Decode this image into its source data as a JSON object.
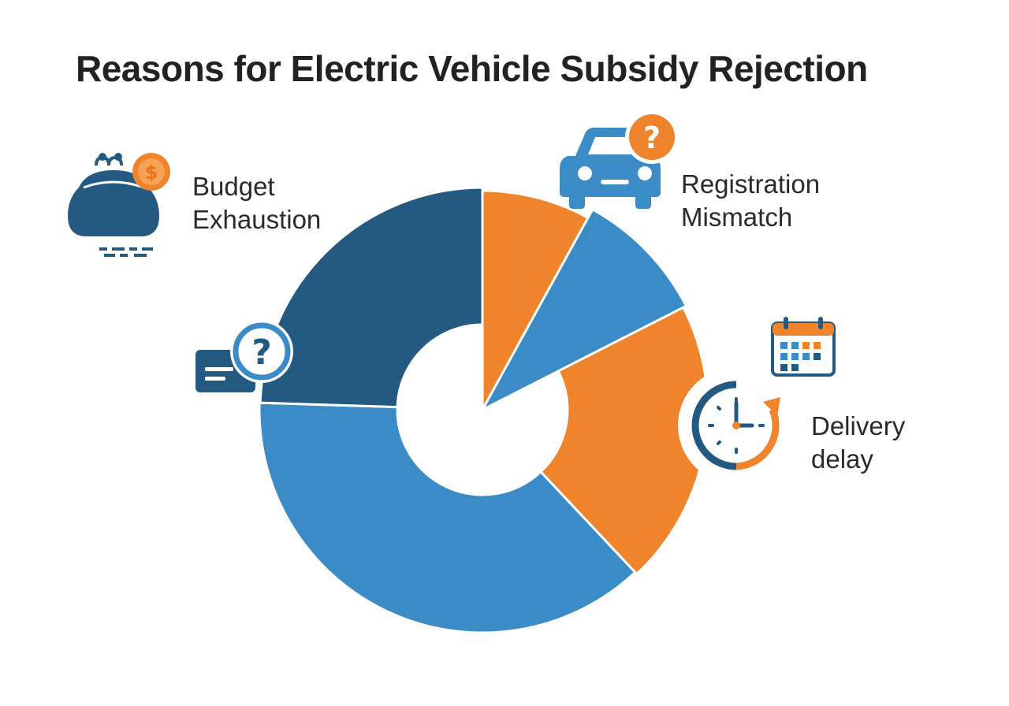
{
  "title": "Reasons for Electric Vehicle Subsidy Rejection",
  "chart_data": {
    "type": "pie",
    "variant": "donut",
    "title": "Reasons for Electric Vehicle Subsidy Rejection",
    "slices": [
      {
        "category": "Registration Mismatch",
        "value": 8,
        "color": "#f0842c"
      },
      {
        "category": "",
        "value": 9.5,
        "color": "#3a8bc6"
      },
      {
        "category": "Delivery delay",
        "value": 20.5,
        "color": "#f0842c"
      },
      {
        "category": "",
        "value": 37.5,
        "color": "#3a8bc6"
      },
      {
        "category": "Budget Exhaustion",
        "value": 24.5,
        "color": "#245a81"
      }
    ],
    "legend": "none"
  },
  "labels": {
    "budget": [
      "Budget",
      "Exhaustion"
    ],
    "registration": [
      "Registration",
      "Mismatch"
    ],
    "delivery": [
      "Delivery",
      "delay"
    ]
  },
  "icons": {
    "budget": "purse-coin-icon",
    "registration": "car-question-icon",
    "delivery": "clock-refresh-icon",
    "calendar": "calendar-icon",
    "question_card": "card-question-icon"
  },
  "colors": {
    "orange": "#f0842c",
    "blue": "#3a8bc6",
    "navy": "#245a81",
    "text": "#222222"
  }
}
